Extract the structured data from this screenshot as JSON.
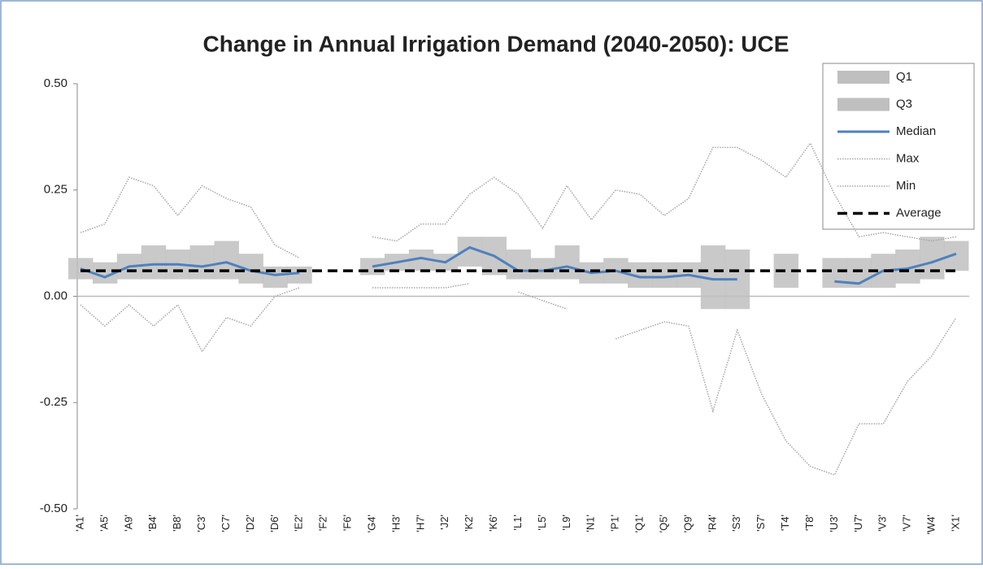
{
  "chart_data": {
    "type": "line",
    "title": "Change in Annual Irrigation Demand (2040-2050): UCE",
    "categories": [
      "'A1'",
      "'A5'",
      "'A9'",
      "'B4'",
      "'B8'",
      "'C3'",
      "'C7'",
      "'D2'",
      "'D6'",
      "'E2'",
      "'F2'",
      "'F6'",
      "'G4'",
      "'H3'",
      "'H7'",
      "'J2'",
      "'K2'",
      "'K6'",
      "'L1'",
      "'L5'",
      "'L9'",
      "'N1'",
      "'P1'",
      "'Q1'",
      "'Q5'",
      "'Q9'",
      "'R4'",
      "'S3'",
      "'S7'",
      "'T4'",
      "'T8'",
      "'U3'",
      "'U7'",
      "'V3'",
      "'V7'",
      "'W4'",
      "'X1'"
    ],
    "ylim": [
      -0.5,
      0.5
    ],
    "yticks": [
      {
        "value": 0.5,
        "label": "0.50"
      },
      0.25,
      {
        "value": 0,
        "label": "0.00"
      },
      -0.25,
      {
        "value": -0.5,
        "label": "-0.50"
      }
    ],
    "legend": "top-right",
    "series": [
      {
        "name": "Q1",
        "kind": "band-low",
        "color": "#bfbfbf",
        "values": [
          0.04,
          0.03,
          0.04,
          0.04,
          0.04,
          0.04,
          0.04,
          0.03,
          0.02,
          0.03,
          null,
          null,
          0.05,
          0.06,
          0.06,
          0.06,
          0.07,
          0.05,
          0.04,
          0.04,
          0.04,
          0.03,
          0.03,
          0.02,
          0.02,
          0.02,
          -0.03,
          -0.03,
          null,
          0.02,
          null,
          0.02,
          0.02,
          0.02,
          0.03,
          0.04,
          0.06
        ]
      },
      {
        "name": "Q3",
        "kind": "band-high",
        "color": "#bfbfbf",
        "values": [
          0.09,
          0.08,
          0.1,
          0.12,
          0.11,
          0.12,
          0.13,
          0.1,
          0.07,
          0.07,
          null,
          null,
          0.09,
          0.1,
          0.11,
          0.1,
          0.14,
          0.14,
          0.11,
          0.09,
          0.12,
          0.08,
          0.09,
          0.08,
          0.08,
          0.08,
          0.12,
          0.11,
          null,
          0.1,
          null,
          0.09,
          0.09,
          0.1,
          0.11,
          0.14,
          0.13
        ]
      },
      {
        "name": "Median",
        "kind": "line",
        "color": "#4f81bd",
        "values": [
          0.065,
          0.045,
          0.07,
          0.075,
          0.075,
          0.07,
          0.08,
          0.06,
          0.05,
          0.055,
          null,
          null,
          0.07,
          0.08,
          0.09,
          0.08,
          0.115,
          0.095,
          0.06,
          0.06,
          0.07,
          0.055,
          0.06,
          0.045,
          0.045,
          0.05,
          0.04,
          0.04,
          null,
          0.05,
          null,
          0.035,
          0.03,
          0.06,
          0.065,
          0.08,
          0.1
        ]
      },
      {
        "name": "Max",
        "kind": "dotted",
        "color": "#a6a6a6",
        "values": [
          0.15,
          0.17,
          0.28,
          0.26,
          0.19,
          0.26,
          0.23,
          0.21,
          0.12,
          0.09,
          null,
          null,
          0.14,
          0.13,
          0.17,
          0.17,
          0.24,
          0.28,
          0.24,
          0.16,
          0.26,
          0.18,
          0.25,
          0.24,
          0.19,
          0.23,
          0.35,
          0.35,
          0.32,
          0.28,
          0.36,
          0.24,
          0.14,
          0.15,
          0.14,
          0.13,
          0.14
        ]
      },
      {
        "name": "Min",
        "kind": "dotted",
        "color": "#a6a6a6",
        "values": [
          -0.02,
          -0.07,
          -0.02,
          -0.07,
          -0.02,
          -0.13,
          -0.05,
          -0.07,
          0.0,
          0.02,
          null,
          null,
          0.02,
          0.02,
          0.02,
          0.02,
          0.03,
          null,
          0.01,
          -0.01,
          -0.03,
          null,
          -0.1,
          -0.08,
          -0.06,
          -0.07,
          -0.27,
          -0.08,
          -0.23,
          -0.34,
          -0.4,
          -0.42,
          -0.3,
          -0.3,
          -0.2,
          -0.14,
          -0.05
        ]
      },
      {
        "name": "Average",
        "kind": "dashed",
        "color": "#000000",
        "values": [
          0.06,
          0.06,
          0.06,
          0.06,
          0.06,
          0.06,
          0.06,
          0.06,
          0.06,
          0.06,
          0.06,
          0.06,
          0.06,
          0.06,
          0.06,
          0.06,
          0.06,
          0.06,
          0.06,
          0.06,
          0.06,
          0.06,
          0.06,
          0.06,
          0.06,
          0.06,
          0.06,
          0.06,
          0.06,
          0.06,
          0.06,
          0.06,
          0.06,
          0.06,
          0.06,
          0.06,
          0.06
        ]
      }
    ]
  }
}
